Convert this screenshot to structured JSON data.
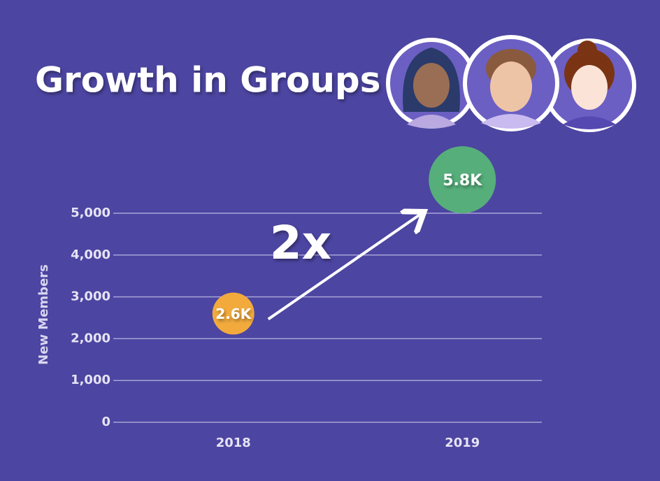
{
  "chart_data": {
    "type": "bubble",
    "title": "Growth in Groups",
    "y_label": "New Members",
    "annotation": "2x",
    "categories": [
      "2018",
      "2019"
    ],
    "values": [
      2600,
      5800
    ],
    "value_labels": [
      "2.6K",
      "5.8K"
    ],
    "colors": [
      "#f2aa3c",
      "#56ae7b"
    ],
    "ylim": [
      0,
      5000
    ],
    "yticks": [
      0,
      {
        "value": 1000,
        "label": "1,000"
      },
      {
        "value": 2000,
        "label": "2,000"
      },
      {
        "value": 3000,
        "label": "3,000"
      },
      {
        "value": 4000,
        "label": "4,000"
      },
      {
        "value": 5000,
        "label": "5,000"
      }
    ],
    "grid": true
  }
}
